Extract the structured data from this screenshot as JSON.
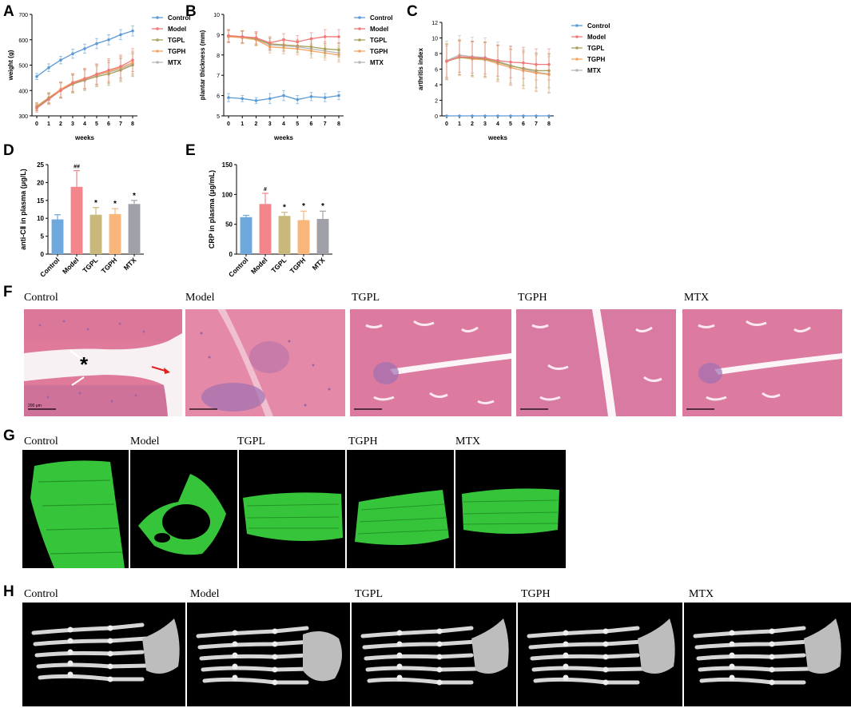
{
  "colors": {
    "Control": "#5b9bd5",
    "Model": "#f07878",
    "TGPL": "#a8a05a",
    "TGPH": "#f4a460",
    "MTX": "#b8b8b8"
  },
  "bar_colors": {
    "Control": "#6fa8dc",
    "Model": "#f4858b",
    "TGPL": "#c8b87a",
    "TGPH": "#f9b67a",
    "MTX": "#a0a0a8"
  },
  "chart_data": [
    {
      "panel": "A",
      "type": "line",
      "xlabel": "weeks",
      "ylabel": "weight (g)",
      "x": [
        0,
        1,
        2,
        3,
        4,
        5,
        6,
        7,
        8
      ],
      "ylim": [
        300,
        700
      ],
      "yticks": [
        300,
        400,
        500,
        600,
        700
      ],
      "legend_position": "right",
      "series": [
        {
          "name": "Control",
          "values": [
            455,
            490,
            520,
            545,
            565,
            585,
            600,
            620,
            635
          ],
          "err": [
            12,
            15,
            15,
            18,
            18,
            20,
            20,
            20,
            20
          ]
        },
        {
          "name": "Model",
          "values": [
            330,
            365,
            400,
            430,
            445,
            465,
            480,
            495,
            520
          ],
          "err": [
            15,
            20,
            30,
            35,
            40,
            40,
            45,
            45,
            45
          ]
        },
        {
          "name": "TGPL",
          "values": [
            335,
            370,
            400,
            425,
            440,
            455,
            465,
            480,
            500
          ],
          "err": [
            15,
            20,
            30,
            35,
            40,
            40,
            45,
            45,
            45
          ]
        },
        {
          "name": "TGPH",
          "values": [
            338,
            372,
            405,
            432,
            448,
            462,
            475,
            490,
            510
          ],
          "err": [
            15,
            20,
            30,
            35,
            40,
            40,
            45,
            45,
            45
          ]
        },
        {
          "name": "MTX",
          "values": [
            335,
            368,
            402,
            428,
            445,
            460,
            472,
            485,
            505
          ],
          "err": [
            15,
            20,
            30,
            35,
            40,
            40,
            45,
            45,
            45
          ]
        }
      ]
    },
    {
      "panel": "B",
      "type": "line",
      "xlabel": "weeks",
      "ylabel": "plantar thickness (mm)",
      "x": [
        0,
        1,
        2,
        3,
        4,
        5,
        6,
        7,
        8
      ],
      "ylim": [
        5,
        10
      ],
      "yticks": [
        5,
        6,
        7,
        8,
        9,
        10
      ],
      "legend_position": "right",
      "series": [
        {
          "name": "Control",
          "values": [
            5.9,
            5.85,
            5.75,
            5.85,
            6.0,
            5.8,
            5.95,
            5.9,
            6.0
          ],
          "err": [
            0.2,
            0.15,
            0.15,
            0.25,
            0.25,
            0.2,
            0.2,
            0.2,
            0.2
          ]
        },
        {
          "name": "Model",
          "values": [
            8.95,
            8.9,
            8.85,
            8.6,
            8.75,
            8.65,
            8.8,
            8.9,
            8.9
          ],
          "err": [
            0.3,
            0.3,
            0.3,
            0.3,
            0.3,
            0.3,
            0.3,
            0.35,
            0.35
          ]
        },
        {
          "name": "TGPL",
          "values": [
            8.95,
            8.9,
            8.8,
            8.55,
            8.5,
            8.45,
            8.4,
            8.3,
            8.25
          ],
          "err": [
            0.3,
            0.3,
            0.3,
            0.3,
            0.3,
            0.3,
            0.35,
            0.35,
            0.35
          ]
        },
        {
          "name": "TGPH",
          "values": [
            8.9,
            8.85,
            8.75,
            8.4,
            8.35,
            8.3,
            8.2,
            8.1,
            8.0
          ],
          "err": [
            0.3,
            0.3,
            0.3,
            0.3,
            0.3,
            0.3,
            0.35,
            0.35,
            0.35
          ]
        },
        {
          "name": "MTX",
          "values": [
            8.92,
            8.88,
            8.78,
            8.5,
            8.45,
            8.4,
            8.3,
            8.2,
            8.1
          ],
          "err": [
            0.3,
            0.3,
            0.3,
            0.3,
            0.3,
            0.3,
            0.35,
            0.35,
            0.35
          ]
        }
      ]
    },
    {
      "panel": "C",
      "type": "line",
      "xlabel": "weeks",
      "ylabel": "arthritis index",
      "x": [
        0,
        1,
        2,
        3,
        4,
        5,
        6,
        7,
        8
      ],
      "ylim": [
        0,
        12
      ],
      "yticks": [
        0,
        2,
        4,
        6,
        8,
        10,
        12
      ],
      "legend_position": "right",
      "series": [
        {
          "name": "Control",
          "values": [
            0,
            0,
            0,
            0,
            0,
            0,
            0,
            0,
            0
          ],
          "err": [
            0,
            0,
            0,
            0,
            0,
            0,
            0,
            0,
            0
          ]
        },
        {
          "name": "Model",
          "values": [
            7.0,
            7.6,
            7.5,
            7.4,
            7.1,
            6.9,
            6.8,
            6.6,
            6.6
          ],
          "err": [
            2.0,
            2.0,
            2.0,
            2.0,
            2.0,
            2.0,
            2.0,
            2.0,
            2.0
          ]
        },
        {
          "name": "TGPL",
          "values": [
            7.0,
            7.5,
            7.4,
            7.3,
            6.9,
            6.4,
            6.1,
            5.8,
            5.8
          ],
          "err": [
            2.2,
            2.2,
            2.2,
            2.2,
            2.2,
            2.2,
            2.2,
            2.2,
            2.2
          ]
        },
        {
          "name": "TGPH",
          "values": [
            7.0,
            7.5,
            7.3,
            7.2,
            6.7,
            6.2,
            5.8,
            5.5,
            5.3
          ],
          "err": [
            2.3,
            2.3,
            2.3,
            2.3,
            2.3,
            2.3,
            2.3,
            2.3,
            2.3
          ]
        },
        {
          "name": "MTX",
          "values": [
            7.1,
            7.8,
            7.6,
            7.5,
            7.0,
            6.5,
            6.0,
            5.6,
            5.4
          ],
          "err": [
            2.5,
            2.5,
            2.5,
            2.5,
            2.5,
            2.5,
            2.5,
            2.5,
            2.5
          ]
        }
      ]
    },
    {
      "panel": "D",
      "type": "bar",
      "ylabel": "anti-CⅡ in plasma (μg/L)",
      "categories": [
        "Control",
        "Model",
        "TGPL",
        "TGPH",
        "MTX"
      ],
      "values": [
        9.7,
        18.8,
        11.0,
        11.2,
        14.0
      ],
      "err": [
        1.3,
        4.5,
        2.0,
        1.5,
        1.0
      ],
      "annotations": [
        "",
        "##",
        "*",
        "*",
        "*"
      ],
      "ylim": [
        0,
        25
      ],
      "yticks": [
        0,
        5,
        10,
        15,
        20,
        25
      ]
    },
    {
      "panel": "E",
      "type": "bar",
      "ylabel": "CRP in plasma (μg/mL)",
      "categories": [
        "Control",
        "Model",
        "TGPL",
        "TGPH",
        "MTX"
      ],
      "values": [
        62,
        84,
        64,
        57,
        59
      ],
      "err": [
        3,
        18,
        6,
        15,
        13
      ],
      "annotations": [
        "",
        "#",
        "*",
        "*",
        "*"
      ],
      "ylim": [
        0,
        150
      ],
      "yticks": [
        0,
        50,
        100,
        150
      ]
    }
  ],
  "panels": {
    "F": {
      "letter": "F",
      "labels": [
        "Control",
        "Model",
        "TGPL",
        "TGPH",
        "MTX"
      ],
      "asterisk": "*",
      "scalebar": "200 μm"
    },
    "G": {
      "letter": "G",
      "labels": [
        "Control",
        "Model",
        "TGPL",
        "TGPH",
        "MTX"
      ]
    },
    "H": {
      "letter": "H",
      "labels": [
        "Control",
        "Model",
        "TGPL",
        "TGPH",
        "MTX"
      ]
    }
  }
}
